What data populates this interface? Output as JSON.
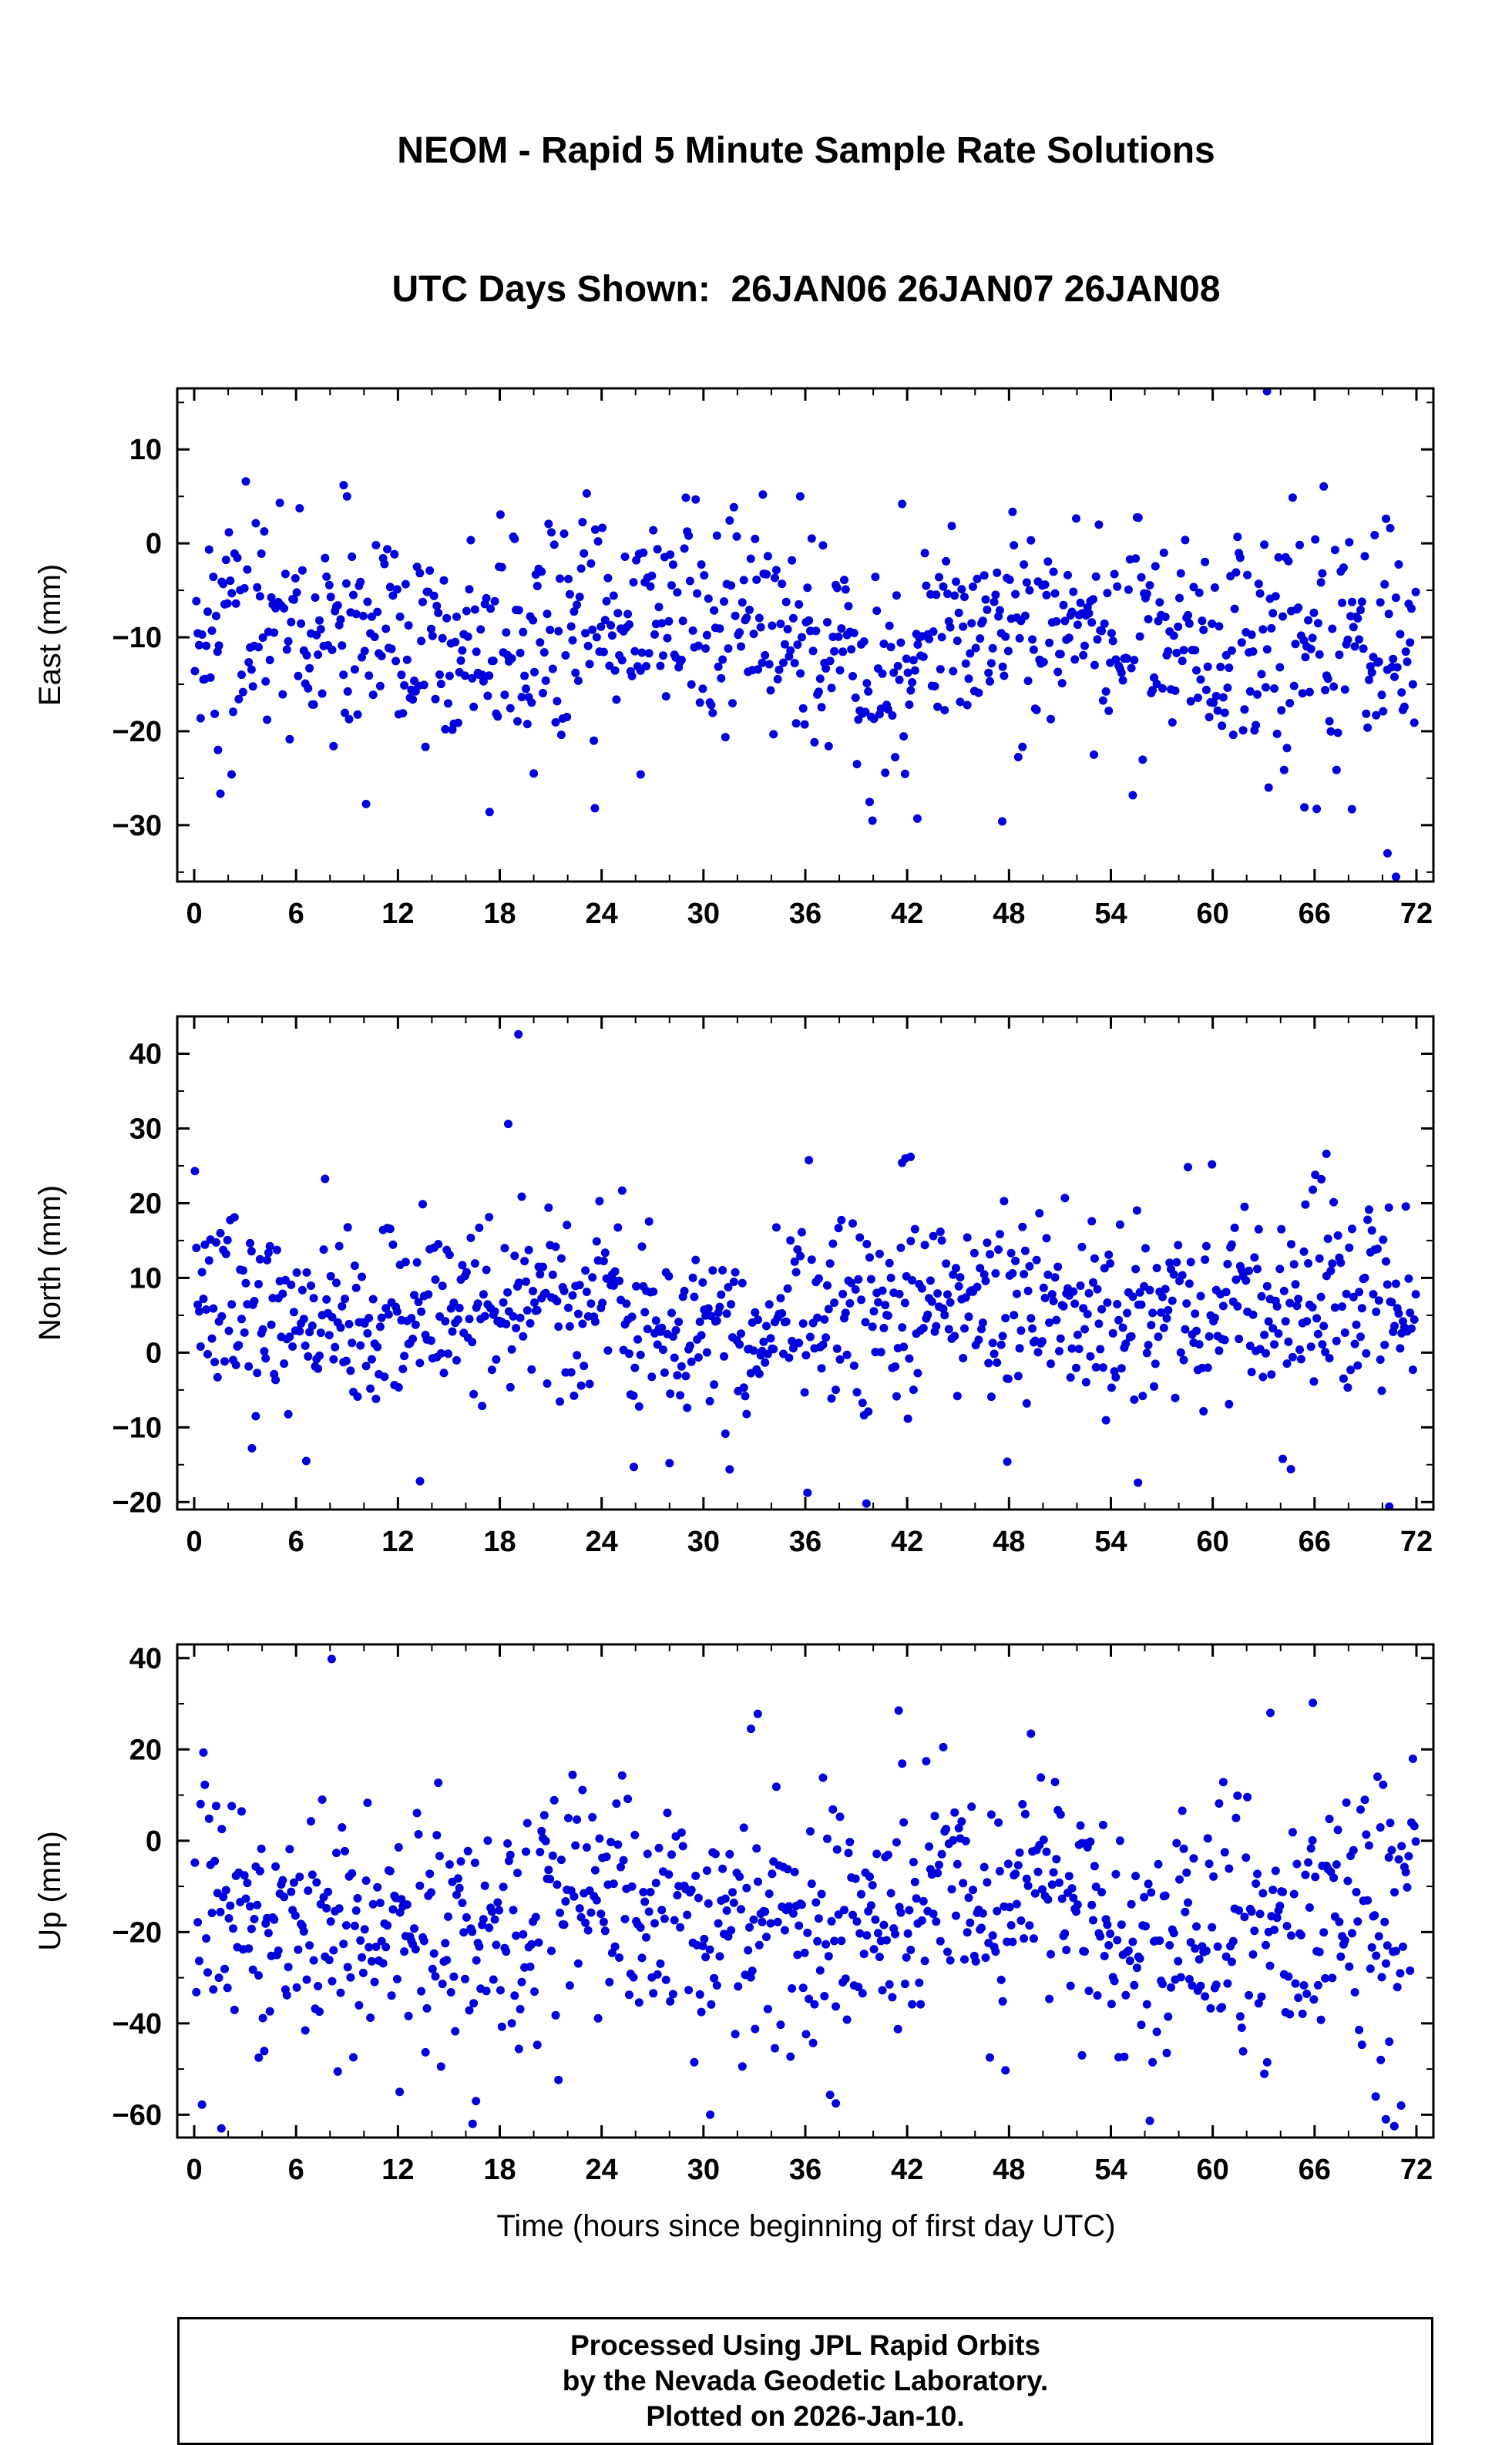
{
  "title": {
    "line1": "NEOM - Rapid 5 Minute Sample Rate Solutions",
    "line2": "UTC Days Shown:  26JAN06 26JAN07 26JAN08"
  },
  "footer": {
    "line1": "Processed Using JPL Rapid Orbits",
    "line2": "by the Nevada Geodetic Laboratory.",
    "line3": "Plotted on 2026-Jan-10."
  },
  "chart_data": {
    "type": "scatter",
    "note": "GPS station NEOM rapid 5-minute position solutions over 3 UTC days; dense point clouds reproduced from per-panel distribution parameters (mm) plus listed outlier points.",
    "marker": {
      "shape": "circle",
      "radius_px": 5.5,
      "color": "#0000dd"
    },
    "grid": false,
    "legend": "none",
    "x": {
      "label": "Time (hours since beginning of first day UTC)",
      "lim": [
        -1,
        73
      ],
      "ticks": [
        0,
        6,
        12,
        18,
        24,
        30,
        36,
        42,
        48,
        54,
        60,
        66,
        72
      ],
      "minor_step": 2
    },
    "panels": [
      {
        "id": "east",
        "ylabel": "East (mm)",
        "ylim": [
          -36,
          16.5
        ],
        "yticks": [
          10,
          0,
          -10,
          -20,
          -30
        ],
        "y_minor_step": 5,
        "count": 864,
        "mean": -9.5,
        "sd": 5.8,
        "seed": 42,
        "wave": {
          "amp": 2.0,
          "period": 24,
          "phase": 0.8
        },
        "color": "#0000dd",
        "outliers": [
          [
            8.8,
            6.2
          ],
          [
            9.0,
            5.0
          ],
          [
            33.5,
            5.2
          ],
          [
            35.7,
            5.0
          ],
          [
            63.2,
            16.2
          ],
          [
            17.4,
            -28.6
          ],
          [
            20.0,
            -24.5
          ],
          [
            23.6,
            -28.2
          ],
          [
            26.3,
            -24.6
          ],
          [
            42.6,
            -29.3
          ],
          [
            47.6,
            -29.6
          ],
          [
            53.0,
            -22.5
          ],
          [
            65.4,
            -28.1
          ],
          [
            68.2,
            -28.3
          ],
          [
            70.3,
            -33.0
          ],
          [
            70.8,
            -35.5
          ],
          [
            2.2,
            -24.6
          ],
          [
            1.4,
            -22.0
          ]
        ]
      },
      {
        "id": "north",
        "ylabel": "North (mm)",
        "ylim": [
          -21,
          45
        ],
        "yticks": [
          40,
          30,
          20,
          10,
          0,
          -10,
          -20
        ],
        "y_minor_step": 5,
        "count": 864,
        "mean": 6.0,
        "sd": 6.3,
        "seed": 7,
        "wave": {
          "amp": 1.8,
          "period": 24,
          "phase": 2.6
        },
        "color": "#0000dd",
        "outliers": [
          [
            19.1,
            42.6
          ],
          [
            18.5,
            30.6
          ],
          [
            19.9,
            -21.6
          ],
          [
            41.9,
            26.0
          ],
          [
            42.2,
            26.2
          ],
          [
            41.7,
            25.4
          ],
          [
            66.7,
            26.6
          ],
          [
            66.4,
            23.2
          ],
          [
            65.9,
            21.8
          ],
          [
            13.3,
            -17.2
          ],
          [
            25.9,
            -15.3
          ],
          [
            28.0,
            -14.8
          ],
          [
            39.6,
            -20.2
          ],
          [
            47.9,
            -14.6
          ],
          [
            55.6,
            -17.4
          ],
          [
            64.6,
            -15.6
          ],
          [
            70.4,
            -20.6
          ],
          [
            6.6,
            -14.5
          ],
          [
            3.4,
            -12.8
          ]
        ]
      },
      {
        "id": "up",
        "ylabel": "Up (mm)",
        "ylim": [
          -65,
          43
        ],
        "yticks": [
          40,
          20,
          0,
          -20,
          -40,
          -60
        ],
        "y_minor_step": 10,
        "count": 864,
        "mean": -17.0,
        "sd": 13.5,
        "seed": 99,
        "wave": {
          "amp": 5.0,
          "period": 24,
          "phase": 1.9
        },
        "color": "#0000dd",
        "outliers": [
          [
            8.1,
            39.8
          ],
          [
            33.2,
            27.8
          ],
          [
            32.8,
            24.5
          ],
          [
            41.5,
            28.5
          ],
          [
            63.4,
            28.0
          ],
          [
            65.9,
            30.2
          ],
          [
            1.6,
            -63.0
          ],
          [
            16.4,
            -62.0
          ],
          [
            16.6,
            -57.0
          ],
          [
            30.4,
            -60.0
          ],
          [
            37.8,
            -57.5
          ],
          [
            52.3,
            -47.0
          ],
          [
            69.6,
            -56.0
          ],
          [
            70.2,
            -61.0
          ],
          [
            70.7,
            -62.5
          ],
          [
            71.1,
            -58.0
          ],
          [
            69.9,
            -48.0
          ],
          [
            70.4,
            -44.0
          ],
          [
            3.8,
            -47.5
          ],
          [
            12.1,
            -55.0
          ]
        ]
      }
    ]
  }
}
